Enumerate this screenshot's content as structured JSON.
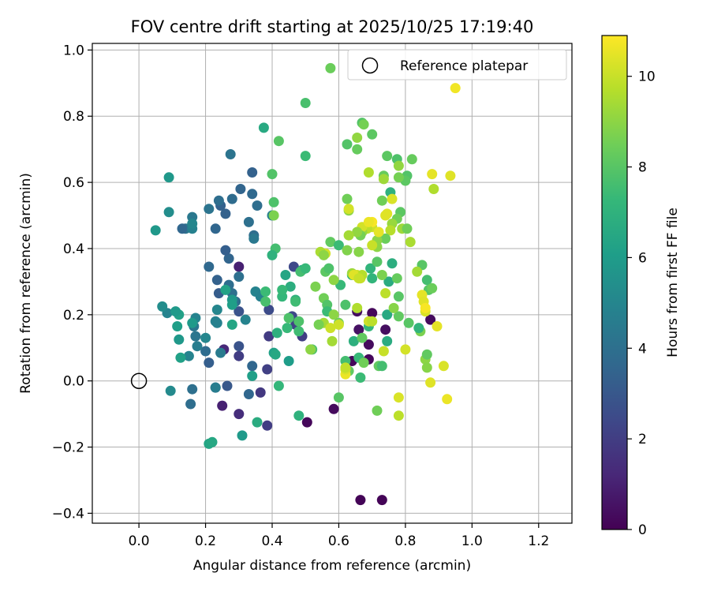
{
  "chart_data": {
    "type": "scatter",
    "title": "FOV centre drift starting at 2025/10/25 17:19:40",
    "xlabel": "Angular distance from reference (arcmin)",
    "ylabel": "Rotation from reference (arcmin)",
    "xlim": [
      -0.14,
      1.3
    ],
    "ylim": [
      -0.43,
      1.02
    ],
    "xticks": [
      0.0,
      0.2,
      0.4,
      0.6,
      0.8,
      1.0,
      1.2
    ],
    "xtick_labels": [
      "0.0",
      "0.2",
      "0.4",
      "0.6",
      "0.8",
      "1.0",
      "1.2"
    ],
    "yticks": [
      -0.4,
      -0.2,
      0.0,
      0.2,
      0.4,
      0.6,
      0.8,
      1.0
    ],
    "ytick_labels": [
      "−0.4",
      "−0.2",
      "0.0",
      "0.2",
      "0.4",
      "0.6",
      "0.8",
      "1.0"
    ],
    "grid": true,
    "legend": {
      "label": "Reference platepar",
      "position": "top-right"
    },
    "reference": {
      "x": 0.0,
      "y": 0.0
    },
    "colorbar": {
      "label": "Hours from first FF file",
      "min": 0,
      "max": 10.9,
      "ticks": [
        0,
        2,
        4,
        6,
        8,
        10
      ],
      "tick_labels": [
        "0",
        "2",
        "4",
        "6",
        "8",
        "10"
      ],
      "colormap": "viridis"
    },
    "colormap_stops": [
      "#440154",
      "#482878",
      "#3e4989",
      "#31688e",
      "#26828e",
      "#1f9e89",
      "#35b779",
      "#6ece58",
      "#b5de2b",
      "#fde725"
    ],
    "points": [
      [
        0.665,
        -0.36,
        0.1
      ],
      [
        0.73,
        -0.36,
        0.1
      ],
      [
        0.505,
        -0.125,
        0.2
      ],
      [
        0.585,
        -0.085,
        0.3
      ],
      [
        0.875,
        0.185,
        0.3
      ],
      [
        0.69,
        0.065,
        0.2
      ],
      [
        0.64,
        0.06,
        0.2
      ],
      [
        0.69,
        0.11,
        0.3
      ],
      [
        0.74,
        0.155,
        0.4
      ],
      [
        0.655,
        0.21,
        0.4
      ],
      [
        0.66,
        0.155,
        0.5
      ],
      [
        0.7,
        0.205,
        0.2
      ],
      [
        0.3,
        0.345,
        1.0
      ],
      [
        0.25,
        -0.075,
        1.0
      ],
      [
        0.255,
        0.095,
        1.2
      ],
      [
        0.3,
        -0.1,
        1.4
      ],
      [
        0.3,
        0.075,
        2.0
      ],
      [
        0.385,
        -0.135,
        2.0
      ],
      [
        0.365,
        -0.035,
        1.8
      ],
      [
        0.385,
        0.035,
        2.1
      ],
      [
        0.39,
        0.135,
        1.9
      ],
      [
        0.47,
        0.17,
        2.2
      ],
      [
        0.46,
        0.195,
        2.4
      ],
      [
        0.49,
        0.135,
        2.0
      ],
      [
        0.39,
        0.215,
        2.5
      ],
      [
        0.465,
        0.345,
        2.4
      ],
      [
        0.3,
        0.21,
        2.8
      ],
      [
        0.3,
        0.105,
        2.8
      ],
      [
        0.265,
        -0.015,
        3.0
      ],
      [
        0.23,
        -0.02,
        3.2
      ],
      [
        0.21,
        0.055,
        3.3
      ],
      [
        0.33,
        -0.04,
        3.6
      ],
      [
        0.34,
        0.045,
        3.6
      ],
      [
        0.24,
        0.265,
        3.2
      ],
      [
        0.235,
        0.305,
        3.4
      ],
      [
        0.27,
        0.37,
        3.5
      ],
      [
        0.26,
        0.395,
        3.3
      ],
      [
        0.23,
        0.46,
        3.6
      ],
      [
        0.245,
        0.53,
        3.4
      ],
      [
        0.26,
        0.505,
        3.4
      ],
      [
        0.21,
        0.345,
        3.7
      ],
      [
        0.2,
        0.09,
        3.8
      ],
      [
        0.155,
        -0.07,
        3.9
      ],
      [
        0.16,
        -0.025,
        4.0
      ],
      [
        0.29,
        0.24,
        3.9
      ],
      [
        0.27,
        0.29,
        3.9
      ],
      [
        0.28,
        0.265,
        4.0
      ],
      [
        0.3,
        0.315,
        4.0
      ],
      [
        0.305,
        0.58,
        3.5
      ],
      [
        0.28,
        0.55,
        3.8
      ],
      [
        0.24,
        0.545,
        3.9
      ],
      [
        0.21,
        0.52,
        4.2
      ],
      [
        0.14,
        0.46,
        4.2
      ],
      [
        0.13,
        0.46,
        3.6
      ],
      [
        0.16,
        0.495,
        4.4
      ],
      [
        0.34,
        0.63,
        3.4
      ],
      [
        0.275,
        0.685,
        4.2
      ],
      [
        0.34,
        0.565,
        3.7
      ],
      [
        0.355,
        0.53,
        3.9
      ],
      [
        0.33,
        0.48,
        4.0
      ],
      [
        0.345,
        0.44,
        3.9
      ],
      [
        0.345,
        0.43,
        4.4
      ],
      [
        0.4,
        0.5,
        4.7
      ],
      [
        0.35,
        0.27,
        4.9
      ],
      [
        0.365,
        0.255,
        4.8
      ],
      [
        0.245,
        0.085,
        4.5
      ],
      [
        0.175,
        0.105,
        4.6
      ],
      [
        0.17,
        0.135,
        4.3
      ],
      [
        0.2,
        0.13,
        5.0
      ],
      [
        0.165,
        0.165,
        4.3
      ],
      [
        0.15,
        0.075,
        4.9
      ],
      [
        0.235,
        0.175,
        4.8
      ],
      [
        0.23,
        0.18,
        4.8
      ],
      [
        0.235,
        0.215,
        5.0
      ],
      [
        0.32,
        0.185,
        4.9
      ],
      [
        0.23,
        -0.02,
        4.6
      ],
      [
        0.17,
        0.19,
        4.9
      ],
      [
        0.16,
        0.46,
        4.8
      ],
      [
        0.16,
        0.475,
        5.0
      ],
      [
        0.085,
        0.205,
        4.9
      ],
      [
        0.07,
        0.225,
        5.3
      ],
      [
        0.09,
        0.51,
        5.3
      ],
      [
        0.05,
        0.455,
        5.8
      ],
      [
        0.09,
        0.615,
        5.8
      ],
      [
        0.095,
        -0.03,
        5.2
      ],
      [
        0.12,
        0.125,
        5.8
      ],
      [
        0.115,
        0.165,
        6.1
      ],
      [
        0.125,
        0.07,
        6.2
      ],
      [
        0.12,
        0.2,
        6.2
      ],
      [
        0.11,
        0.21,
        5.9
      ],
      [
        0.16,
        0.175,
        5.9
      ],
      [
        0.28,
        0.245,
        5.8
      ],
      [
        0.28,
        0.23,
        6.1
      ],
      [
        0.26,
        0.275,
        6.3
      ],
      [
        0.28,
        0.17,
        6.4
      ],
      [
        0.34,
        0.015,
        6.1
      ],
      [
        0.31,
        -0.165,
        5.9
      ],
      [
        0.355,
        -0.125,
        6.7
      ],
      [
        0.21,
        -0.19,
        6.4
      ],
      [
        0.22,
        -0.185,
        6.5
      ],
      [
        0.38,
        0.27,
        7.4
      ],
      [
        0.375,
        0.765,
        6.6
      ],
      [
        0.405,
        0.085,
        6.2
      ],
      [
        0.45,
        0.06,
        6.0
      ],
      [
        0.41,
        0.08,
        6.5
      ],
      [
        0.415,
        0.145,
        6.9
      ],
      [
        0.445,
        0.16,
        7.3
      ],
      [
        0.48,
        -0.105,
        7.0
      ],
      [
        0.42,
        -0.015,
        7.2
      ],
      [
        0.44,
        0.32,
        6.4
      ],
      [
        0.455,
        0.285,
        6.8
      ],
      [
        0.47,
        0.245,
        7.0
      ],
      [
        0.49,
        0.335,
        6.3
      ],
      [
        0.41,
        0.4,
        7.6
      ],
      [
        0.4,
        0.38,
        7.0
      ],
      [
        0.43,
        0.255,
        7.2
      ],
      [
        0.43,
        0.275,
        7.3
      ],
      [
        0.38,
        0.24,
        7.7
      ],
      [
        0.47,
        0.24,
        7.5
      ],
      [
        0.48,
        0.15,
        7.5
      ],
      [
        0.52,
        0.095,
        7.8
      ],
      [
        0.48,
        0.18,
        7.8
      ],
      [
        0.45,
        0.19,
        7.8
      ],
      [
        0.485,
        0.33,
        7.6
      ],
      [
        0.5,
        0.34,
        7.3
      ],
      [
        0.4,
        0.625,
        7.9
      ],
      [
        0.405,
        0.54,
        7.8
      ],
      [
        0.42,
        0.725,
        8.0
      ],
      [
        0.5,
        0.68,
        7.4
      ],
      [
        0.5,
        0.84,
        7.7
      ],
      [
        0.575,
        0.945,
        8.4
      ],
      [
        0.405,
        0.5,
        8.7
      ],
      [
        0.53,
        0.285,
        8.7
      ],
      [
        0.555,
        0.25,
        8.5
      ],
      [
        0.56,
        0.33,
        8.1
      ],
      [
        0.57,
        0.34,
        7.8
      ],
      [
        0.575,
        0.42,
        8.2
      ],
      [
        0.565,
        0.23,
        7.9
      ],
      [
        0.565,
        0.21,
        7.4
      ],
      [
        0.58,
        0.12,
        9.4
      ],
      [
        0.6,
        -0.05,
        8.0
      ],
      [
        0.62,
        0.06,
        7.6
      ],
      [
        0.63,
        0.03,
        8.2
      ],
      [
        0.6,
        0.41,
        7.4
      ],
      [
        0.605,
        0.29,
        7.3
      ],
      [
        0.62,
        0.23,
        7.8
      ],
      [
        0.64,
        0.32,
        7.0
      ],
      [
        0.645,
        0.12,
        6.9
      ],
      [
        0.66,
        0.07,
        7.3
      ],
      [
        0.665,
        0.01,
        7.4
      ],
      [
        0.675,
        0.055,
        8.5
      ],
      [
        0.67,
        0.13,
        8.2
      ],
      [
        0.69,
        0.165,
        7.2
      ],
      [
        0.695,
        0.34,
        7.1
      ],
      [
        0.7,
        0.31,
        7.1
      ],
      [
        0.715,
        0.36,
        8.0
      ],
      [
        0.72,
        0.045,
        8.2
      ],
      [
        0.73,
        0.045,
        7.6
      ],
      [
        0.715,
        -0.09,
        8.5
      ],
      [
        0.78,
        -0.105,
        9.8
      ],
      [
        0.78,
        0.195,
        8.2
      ],
      [
        0.745,
        0.2,
        6.6
      ],
      [
        0.745,
        0.12,
        6.7
      ],
      [
        0.75,
        0.3,
        6.7
      ],
      [
        0.76,
        0.355,
        6.8
      ],
      [
        0.775,
        0.31,
        8.3
      ],
      [
        0.78,
        0.255,
        8.0
      ],
      [
        0.81,
        0.175,
        8.0
      ],
      [
        0.845,
        0.15,
        8.7
      ],
      [
        0.85,
        0.35,
        8.0
      ],
      [
        0.865,
        0.305,
        7.6
      ],
      [
        0.86,
        0.065,
        9.0
      ],
      [
        0.865,
        0.08,
        8.2
      ],
      [
        0.865,
        0.04,
        8.9
      ],
      [
        0.875,
        -0.005,
        10.4
      ],
      [
        0.87,
        0.275,
        8.0
      ],
      [
        0.88,
        0.28,
        8.4
      ],
      [
        0.885,
        0.58,
        9.6
      ],
      [
        0.88,
        0.625,
        10.5
      ],
      [
        0.82,
        0.67,
        8.3
      ],
      [
        0.805,
        0.62,
        7.9
      ],
      [
        0.8,
        0.605,
        8.1
      ],
      [
        0.785,
        0.51,
        8.1
      ],
      [
        0.79,
        0.46,
        9.3
      ],
      [
        0.775,
        0.49,
        8.5
      ],
      [
        0.76,
        0.475,
        9.2
      ],
      [
        0.755,
        0.455,
        9.7
      ],
      [
        0.755,
        0.57,
        7.0
      ],
      [
        0.76,
        0.55,
        10.3
      ],
      [
        0.745,
        0.505,
        10.4
      ],
      [
        0.74,
        0.5,
        10.4
      ],
      [
        0.74,
        0.43,
        8.4
      ],
      [
        0.73,
        0.545,
        8.5
      ],
      [
        0.715,
        0.425,
        9.0
      ],
      [
        0.715,
        0.405,
        9.0
      ],
      [
        0.7,
        0.41,
        10.0
      ],
      [
        0.7,
        0.465,
        10.1
      ],
      [
        0.7,
        0.48,
        10.8
      ],
      [
        0.685,
        0.46,
        9.8
      ],
      [
        0.67,
        0.45,
        9.2
      ],
      [
        0.67,
        0.465,
        10.2
      ],
      [
        0.665,
        0.44,
        8.6
      ],
      [
        0.655,
        0.45,
        9.1
      ],
      [
        0.66,
        0.39,
        8.9
      ],
      [
        0.69,
        0.63,
        9.6
      ],
      [
        0.67,
        0.78,
        7.9
      ],
      [
        0.675,
        0.775,
        8.6
      ],
      [
        0.7,
        0.745,
        8.1
      ],
      [
        0.655,
        0.735,
        9.1
      ],
      [
        0.655,
        0.7,
        8.3
      ],
      [
        0.625,
        0.715,
        7.9
      ],
      [
        0.625,
        0.55,
        8.5
      ],
      [
        0.63,
        0.515,
        9.0
      ],
      [
        0.63,
        0.52,
        10.2
      ],
      [
        0.63,
        0.44,
        9.4
      ],
      [
        0.625,
        0.395,
        8.8
      ],
      [
        0.64,
        0.325,
        9.3
      ],
      [
        0.655,
        0.32,
        10.2
      ],
      [
        0.665,
        0.31,
        10.0
      ],
      [
        0.67,
        0.32,
        9.7
      ],
      [
        0.655,
        0.22,
        9.6
      ],
      [
        0.69,
        0.18,
        10.1
      ],
      [
        0.7,
        0.18,
        9.8
      ],
      [
        0.62,
        0.02,
        10.6
      ],
      [
        0.62,
        0.035,
        10.3
      ],
      [
        0.62,
        0.04,
        9.9
      ],
      [
        0.56,
        0.385,
        10.2
      ],
      [
        0.545,
        0.39,
        9.5
      ],
      [
        0.555,
        0.175,
        9.4
      ],
      [
        0.575,
        0.16,
        10.1
      ],
      [
        0.585,
        0.2,
        9.0
      ],
      [
        0.585,
        0.305,
        9.0
      ],
      [
        0.6,
        0.175,
        8.5
      ],
      [
        0.6,
        0.17,
        10.1
      ],
      [
        0.555,
        0.38,
        9.0
      ],
      [
        0.54,
        0.17,
        8.6
      ],
      [
        0.515,
        0.095,
        9.0
      ],
      [
        0.73,
        0.32,
        8.7
      ],
      [
        0.74,
        0.265,
        9.8
      ],
      [
        0.765,
        0.22,
        8.9
      ],
      [
        0.775,
        0.67,
        7.8
      ],
      [
        0.78,
        0.65,
        9.1
      ],
      [
        0.745,
        0.68,
        8.1
      ],
      [
        0.735,
        0.62,
        8.3
      ],
      [
        0.735,
        0.61,
        9.3
      ],
      [
        0.78,
        0.615,
        8.6
      ],
      [
        0.805,
        0.46,
        8.5
      ],
      [
        0.815,
        0.42,
        9.5
      ],
      [
        0.835,
        0.33,
        9.4
      ],
      [
        0.84,
        0.16,
        7.1
      ],
      [
        0.85,
        0.26,
        10.5
      ],
      [
        0.855,
        0.24,
        10.4
      ],
      [
        0.86,
        0.21,
        10.3
      ],
      [
        0.86,
        0.22,
        10.8
      ],
      [
        0.895,
        0.165,
        10.5
      ],
      [
        0.915,
        0.045,
        10.3
      ],
      [
        0.925,
        -0.055,
        10.6
      ],
      [
        0.935,
        0.62,
        10.4
      ],
      [
        0.95,
        0.885,
        10.7
      ],
      [
        0.8,
        0.095,
        10.2
      ],
      [
        0.78,
        -0.05,
        10.3
      ],
      [
        0.735,
        0.09,
        10.0
      ],
      [
        0.72,
        0.45,
        10.5
      ],
      [
        0.69,
        0.48,
        10.6
      ],
      [
        0.645,
        0.32,
        10.4
      ],
      [
        0.66,
        0.31,
        10.0
      ]
    ]
  }
}
